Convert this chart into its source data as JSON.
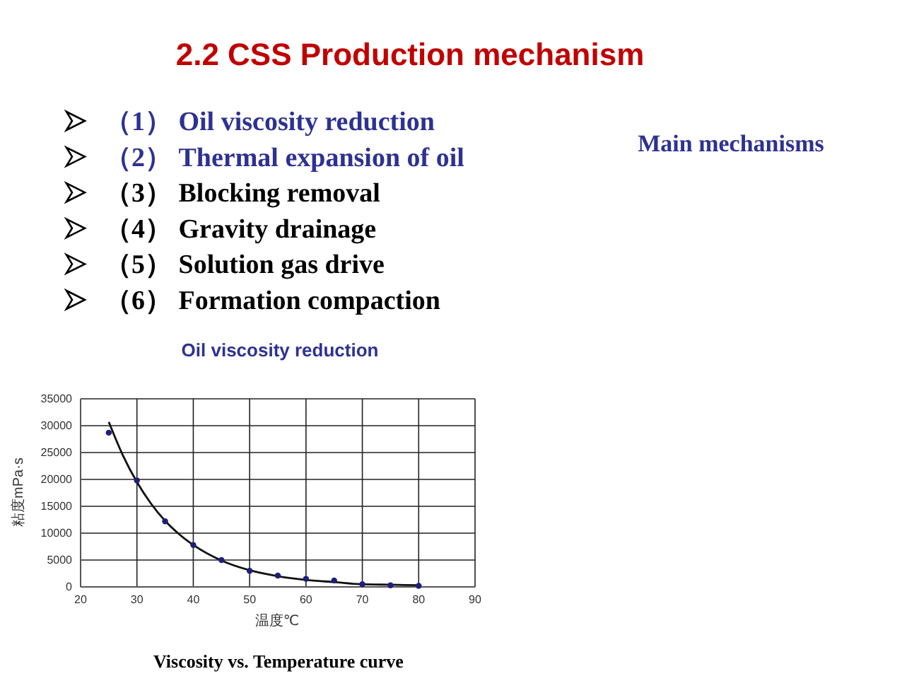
{
  "chart_data": {
    "type": "scatter",
    "title": "2.2  CSS  Production mechanism",
    "xlabel": "温度℃",
    "ylabel": "粘度mPa·s",
    "annotations": [
      "（1） Oil viscosity reduction",
      "（2） Thermal expansion of oil",
      "（3） Blocking removal",
      "（4） Gravity drainage",
      "（5） Solution gas  drive",
      "（6） Formation  compaction",
      "Main mechanisms",
      "Oil viscosity reduction",
      "Viscosity vs. Temperature curve"
    ],
    "xlim": [
      20,
      90
    ],
    "xticks": [
      20,
      30,
      40,
      50,
      60,
      70,
      80,
      90
    ],
    "ylim": [
      0,
      35000
    ],
    "yticks": [
      0,
      5000,
      10000,
      15000,
      20000,
      25000,
      30000,
      35000
    ],
    "grid": true,
    "series": [
      {
        "marker": "circle",
        "color": "#1f1f7a",
        "x": [
          25,
          30,
          35,
          40,
          45,
          50,
          55,
          60,
          65,
          70,
          75,
          80
        ],
        "values": [
          28700,
          19800,
          12200,
          7800,
          5000,
          3000,
          2100,
          1500,
          1200,
          500,
          300,
          200
        ]
      },
      {
        "type": "line",
        "marker": "none",
        "line_style": "solid",
        "color": "#111111",
        "x": [
          25,
          27.5,
          30,
          32.5,
          35,
          37.5,
          40,
          45,
          50,
          55,
          60,
          65,
          70,
          75,
          80
        ],
        "values": [
          30700,
          24500,
          19500,
          15500,
          12300,
          9800,
          7800,
          4900,
          3100,
          2000,
          1300,
          900,
          500,
          400,
          300
        ]
      }
    ]
  }
}
